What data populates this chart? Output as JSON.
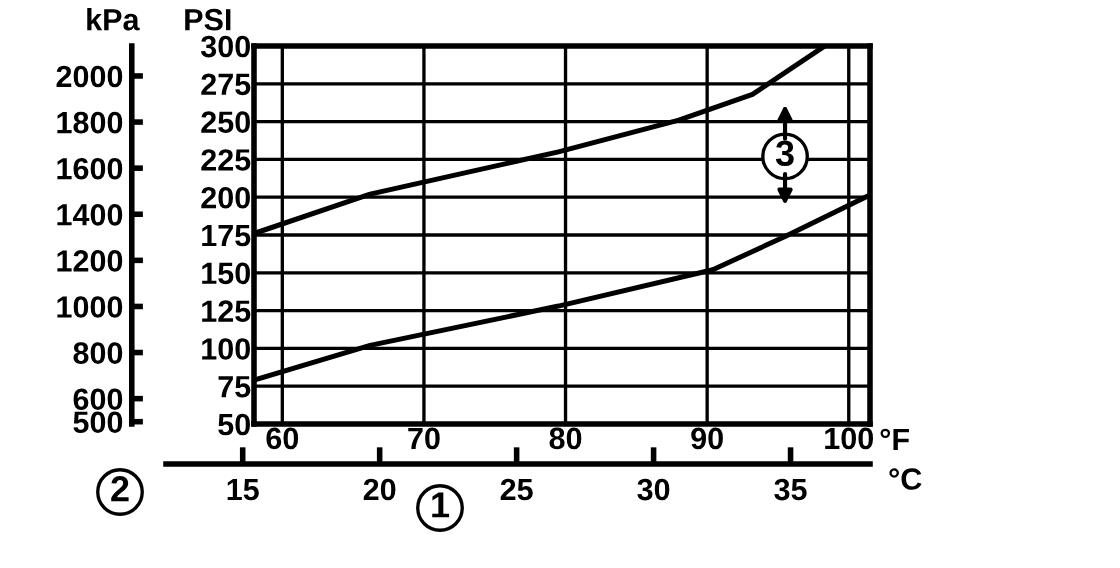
{
  "chart_data": {
    "type": "line",
    "ylabel": "PSI",
    "y3label": "kPa",
    "xlabel": "°F",
    "x2label": "°C",
    "xlim": [
      58,
      101.5
    ],
    "xticks": [
      60,
      70,
      80,
      90,
      100
    ],
    "x2lim": [
      12.2,
      37.9
    ],
    "x2ticks": [
      15,
      20,
      25,
      30,
      35
    ],
    "ylim": [
      50,
      300
    ],
    "yticks": [
      50,
      75,
      100,
      125,
      150,
      175,
      200,
      225,
      250,
      275,
      300
    ],
    "y3lim": [
      490,
      2130
    ],
    "y3ticks": [
      500,
      600,
      800,
      1000,
      1200,
      1400,
      1600,
      1800,
      2000
    ],
    "grid": true,
    "marker": "none",
    "line_style": "solid",
    "series": [
      {
        "color": "#000000",
        "x": [
          58,
          66.2,
          79.5,
          88,
          93.2,
          98.3
        ],
        "values": [
          176,
          202,
          230,
          251,
          268,
          300
        ]
      },
      {
        "color": "#000000",
        "x": [
          58,
          66.2,
          79.5,
          90.4,
          95.5,
          101.4
        ],
        "values": [
          79,
          102,
          128,
          152,
          174,
          201
        ]
      }
    ],
    "annotations": [
      "1",
      "2",
      {
        "text": "3",
        "x": 95.5,
        "y": 227
      }
    ]
  }
}
